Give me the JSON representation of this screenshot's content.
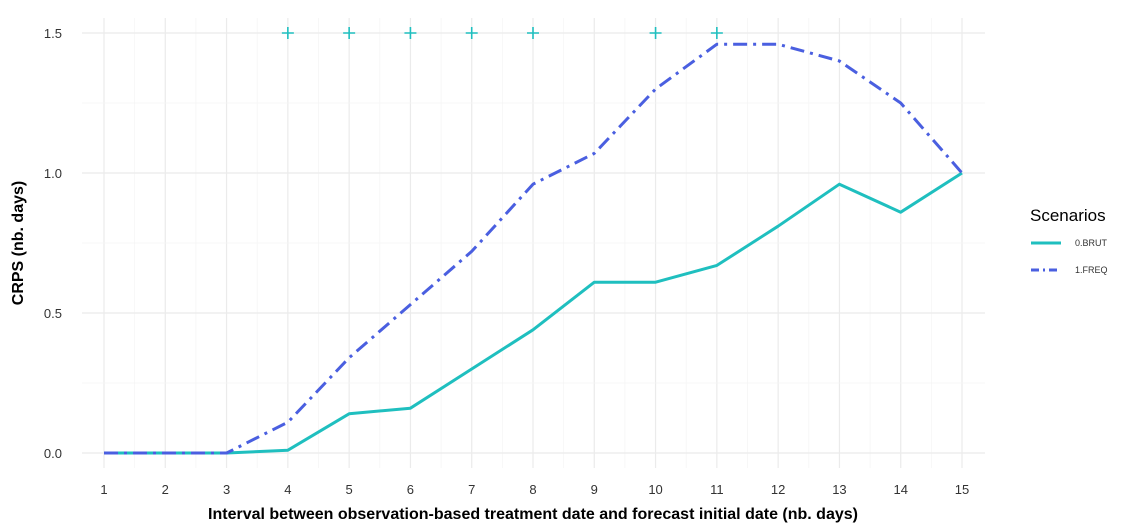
{
  "chart_data": {
    "type": "line",
    "xlabel": "Interval between observation-based treatment date and forecast initial date (nb. days)",
    "ylabel": "CRPS (nb. days)",
    "x_ticks": [
      1,
      2,
      3,
      4,
      5,
      6,
      7,
      8,
      9,
      10,
      11,
      12,
      13,
      14,
      15
    ],
    "y_ticks": [
      "0.0",
      "0.5",
      "1.0",
      "1.5"
    ],
    "xlim": [
      1,
      15
    ],
    "ylim": [
      0,
      1.5
    ],
    "grid": true,
    "legend": {
      "title": "Scenarios",
      "placement": "right"
    },
    "series": [
      {
        "name": "0.BRUT",
        "color": "#1fbfbf",
        "dash": "solid",
        "x": [
          1,
          2,
          3,
          4,
          5,
          6,
          7,
          8,
          9,
          10,
          11,
          12,
          13,
          14,
          15
        ],
        "y": [
          0.0,
          0.0,
          0.0,
          0.01,
          0.14,
          0.16,
          0.3,
          0.44,
          0.61,
          0.61,
          0.67,
          0.81,
          0.96,
          0.86,
          1.0
        ]
      },
      {
        "name": "1.FREQ",
        "color": "#4a5fe0",
        "dash": "dashdot",
        "x": [
          1,
          2,
          3,
          4,
          5,
          6,
          7,
          8,
          9,
          10,
          11,
          12,
          13,
          14,
          15
        ],
        "y": [
          0.0,
          0.0,
          0.0,
          0.11,
          0.34,
          0.53,
          0.72,
          0.96,
          1.07,
          1.3,
          1.46,
          1.46,
          1.4,
          1.25,
          1.0
        ]
      }
    ],
    "markers": {
      "symbol": "plus",
      "color": "#1fbfbf",
      "x": [
        4,
        5,
        6,
        7,
        8,
        10,
        11
      ],
      "y": 1.5
    }
  }
}
